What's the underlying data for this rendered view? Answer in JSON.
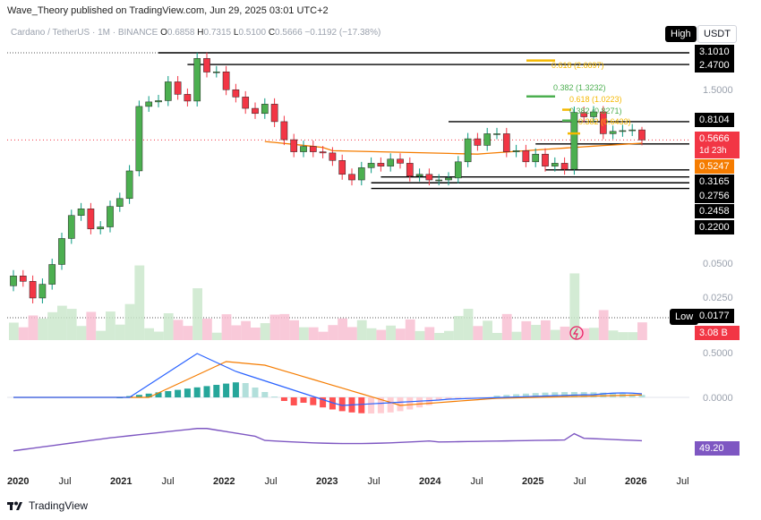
{
  "header": {
    "publisher": "Wave_Theory published on TradingView.com, Jun 29, 2025 03:01 UTC+2"
  },
  "symbol_bar": {
    "name": "Cardano / TetherUS · 1M · BINANCE",
    "o": "0.6858",
    "h": "0.7315",
    "l": "0.5100",
    "c": "0.5666",
    "chg": "−0.1192 (−17.38%)"
  },
  "buttons": {
    "high": "High",
    "currency": "USDT",
    "low": "Low"
  },
  "price_axis": {
    "labels": [
      "3.1010",
      "2.4700",
      "1.5000",
      "0.8104",
      "0.5666",
      "1d 23h",
      "0.5247",
      "0.3165",
      "0.2756",
      "0.2458",
      "0.2200",
      "0.0500",
      "0.0250",
      "0.0177",
      "3.08 B"
    ],
    "colors": {
      "down": "#f23645",
      "up": "#089981",
      "ma": "#f57c00",
      "fib_green": "#4caf50",
      "fib_gold": "#f5b800"
    }
  },
  "fib_labels": [
    "0.618 (2.6697)",
    "0.382 (1.3232)",
    "0.618 (1.0223)",
    "0.382 (0.8271)",
    "0.382 (0.6433)"
  ],
  "macd_axis": [
    "0.5000",
    "0.0000"
  ],
  "rsi_axis": [
    "49.20"
  ],
  "time_axis": [
    "2020",
    "Jul",
    "2021",
    "Jul",
    "2022",
    "Jul",
    "2023",
    "Jul",
    "2024",
    "Jul",
    "2025",
    "Jul",
    "2026",
    "Jul"
  ],
  "branding": {
    "logo_text": "TradingView"
  },
  "chart_data": {
    "type": "candlestick",
    "months": [
      "2020-01",
      "2020-02",
      "2020-03",
      "2020-04",
      "2020-05",
      "2020-06",
      "2020-07",
      "2020-08",
      "2020-09",
      "2020-10",
      "2020-11",
      "2020-12",
      "2021-01",
      "2021-02",
      "2021-03",
      "2021-04",
      "2021-05",
      "2021-06",
      "2021-07",
      "2021-08",
      "2021-09",
      "2021-10",
      "2021-11",
      "2021-12",
      "2022-01",
      "2022-02",
      "2022-03",
      "2022-04",
      "2022-05",
      "2022-06",
      "2022-07",
      "2022-08",
      "2022-09",
      "2022-10",
      "2022-11",
      "2022-12",
      "2023-01",
      "2023-02",
      "2023-03",
      "2023-04",
      "2023-05",
      "2023-06",
      "2023-07",
      "2023-08",
      "2023-09",
      "2023-10",
      "2023-11",
      "2023-12",
      "2024-01",
      "2024-02",
      "2024-03",
      "2024-04",
      "2024-05",
      "2024-06",
      "2024-07",
      "2024-08",
      "2024-09",
      "2024-10",
      "2024-11",
      "2024-12",
      "2025-01",
      "2025-02",
      "2025-03",
      "2025-04",
      "2025-05",
      "2025-06"
    ],
    "open": [
      0.033,
      0.04,
      0.036,
      0.026,
      0.034,
      0.05,
      0.083,
      0.13,
      0.148,
      0.1,
      0.104,
      0.155,
      0.181,
      0.31,
      1.09,
      1.19,
      1.22,
      1.76,
      1.38,
      1.21,
      2.78,
      2.13,
      2.14,
      1.51,
      1.31,
      1.05,
      0.95,
      1.14,
      0.81,
      0.57,
      0.45,
      0.5,
      0.45,
      0.44,
      0.38,
      0.29,
      0.26,
      0.33,
      0.36,
      0.34,
      0.39,
      0.36,
      0.28,
      0.29,
      0.26,
      0.26,
      0.27,
      0.37,
      0.58,
      0.51,
      0.64,
      0.64,
      0.45,
      0.46,
      0.37,
      0.43,
      0.34,
      0.36,
      0.32,
      0.97,
      0.89,
      0.98,
      0.64,
      0.67,
      0.68,
      0.69
    ],
    "close": [
      0.04,
      0.036,
      0.026,
      0.034,
      0.05,
      0.083,
      0.13,
      0.148,
      0.1,
      0.104,
      0.155,
      0.181,
      0.31,
      1.09,
      1.19,
      1.22,
      1.76,
      1.38,
      1.21,
      2.78,
      2.13,
      2.14,
      1.51,
      1.31,
      1.05,
      0.95,
      1.14,
      0.81,
      0.57,
      0.45,
      0.5,
      0.45,
      0.44,
      0.38,
      0.29,
      0.26,
      0.33,
      0.36,
      0.34,
      0.39,
      0.36,
      0.28,
      0.29,
      0.26,
      0.26,
      0.27,
      0.37,
      0.58,
      0.51,
      0.64,
      0.64,
      0.45,
      0.46,
      0.37,
      0.43,
      0.34,
      0.36,
      0.32,
      0.97,
      0.89,
      0.98,
      0.64,
      0.67,
      0.68,
      0.69,
      0.5666
    ],
    "high_last": 0.7315,
    "low_last": 0.51,
    "resistance_levels": [
      3.101,
      2.47,
      0.8104
    ],
    "support_levels": [
      0.5247,
      0.3165,
      0.2756,
      0.2458,
      0.22
    ],
    "current_price": 0.5666,
    "volume_last": "3.08 B",
    "rsi_last": 49.2
  }
}
